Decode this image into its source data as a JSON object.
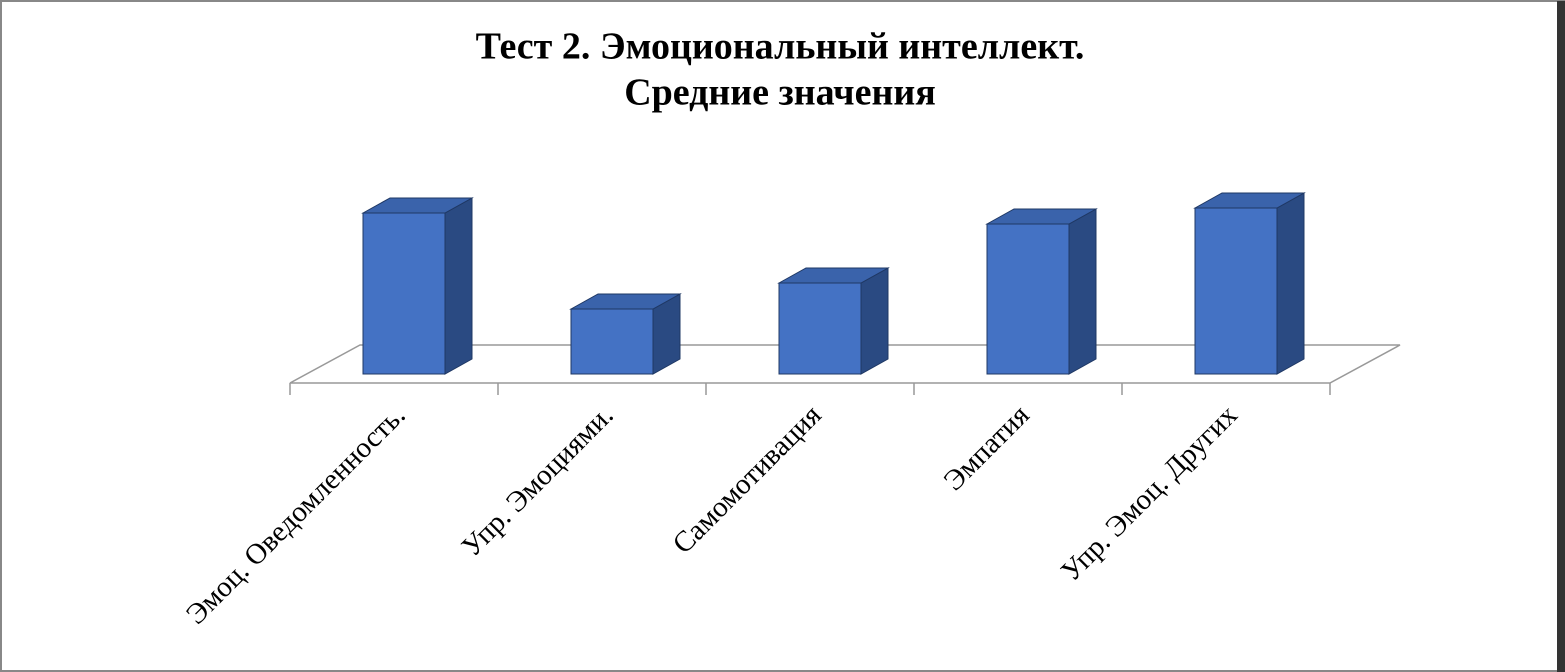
{
  "chart_data": {
    "type": "bar3d",
    "title": "Тест 2. Эмоциональный интеллект.",
    "subtitle": "Средние значения",
    "categories": [
      "Эмоц. Оведомленность.",
      "Упр. Эмоциями.",
      "Самомотивация",
      "Эмпатия",
      "Упр. Эмоц. Других"
    ],
    "values": [
      161,
      65,
      91,
      150,
      166
    ],
    "color": "#4472c4",
    "ylim": [
      0,
      200
    ]
  }
}
